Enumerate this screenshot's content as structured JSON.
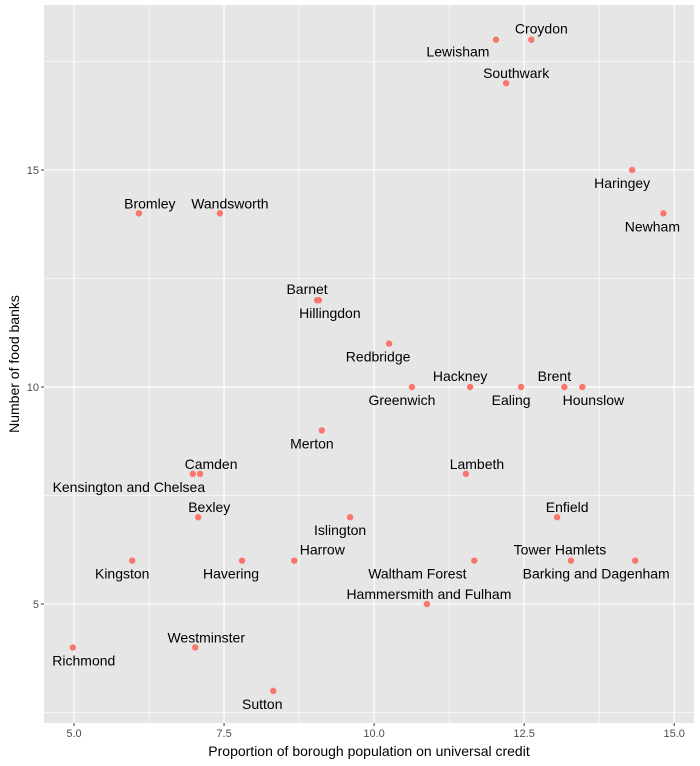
{
  "chart_data": {
    "type": "scatter",
    "title": "",
    "xlabel": "Proportion of borough population on universal credit",
    "ylabel": "Number of food banks",
    "xlim": [
      4.5,
      15.33
    ],
    "ylim": [
      2.26,
      18.8
    ],
    "xticks": [
      5.0,
      7.5,
      10.0,
      12.5,
      15.0
    ],
    "xtick_labels": [
      "5.0",
      "7.5",
      "10.0",
      "12.5",
      "15.0"
    ],
    "yticks": [
      5,
      10,
      15
    ],
    "ytick_labels": [
      "5",
      "10",
      "15"
    ],
    "grid": true,
    "point_color": "#F8766D",
    "points": [
      {
        "name": "Croydon",
        "x": 12.62,
        "y": 18
      },
      {
        "name": "Lewisham",
        "x": 12.03,
        "y": 18
      },
      {
        "name": "Southwark",
        "x": 12.2,
        "y": 17
      },
      {
        "name": "Haringey",
        "x": 14.3,
        "y": 15
      },
      {
        "name": "Newham",
        "x": 14.82,
        "y": 14
      },
      {
        "name": "Bromley",
        "x": 6.08,
        "y": 14
      },
      {
        "name": "Wandsworth",
        "x": 7.43,
        "y": 14
      },
      {
        "name": "Barnet",
        "x": 9.05,
        "y": 12
      },
      {
        "name": "Hillingdon",
        "x": 9.08,
        "y": 12
      },
      {
        "name": "Redbridge",
        "x": 10.25,
        "y": 11
      },
      {
        "name": "Greenwich",
        "x": 10.63,
        "y": 10
      },
      {
        "name": "Hackney",
        "x": 11.6,
        "y": 10
      },
      {
        "name": "Ealing",
        "x": 12.45,
        "y": 10
      },
      {
        "name": "Brent",
        "x": 13.17,
        "y": 10
      },
      {
        "name": "Hounslow",
        "x": 13.47,
        "y": 10
      },
      {
        "name": "Merton",
        "x": 9.13,
        "y": 9
      },
      {
        "name": "Camden",
        "x": 7.1,
        "y": 8
      },
      {
        "name": "Kensington and Chelsea",
        "x": 6.98,
        "y": 8
      },
      {
        "name": "Lambeth",
        "x": 11.53,
        "y": 8
      },
      {
        "name": "Bexley",
        "x": 7.07,
        "y": 7
      },
      {
        "name": "Islington",
        "x": 9.6,
        "y": 7
      },
      {
        "name": "Enfield",
        "x": 13.05,
        "y": 7
      },
      {
        "name": "Kingston",
        "x": 5.97,
        "y": 6
      },
      {
        "name": "Havering",
        "x": 7.8,
        "y": 6
      },
      {
        "name": "Harrow",
        "x": 8.67,
        "y": 6
      },
      {
        "name": "Waltham Forest",
        "x": 11.67,
        "y": 6
      },
      {
        "name": "Tower Hamlets",
        "x": 13.28,
        "y": 6
      },
      {
        "name": "Barking and Dagenham",
        "x": 14.35,
        "y": 6
      },
      {
        "name": "Hammersmith and Fulham",
        "x": 10.88,
        "y": 5
      },
      {
        "name": "Richmond",
        "x": 4.98,
        "y": 4
      },
      {
        "name": "Westminster",
        "x": 7.02,
        "y": 4
      },
      {
        "name": "Sutton",
        "x": 8.32,
        "y": 3
      }
    ]
  }
}
